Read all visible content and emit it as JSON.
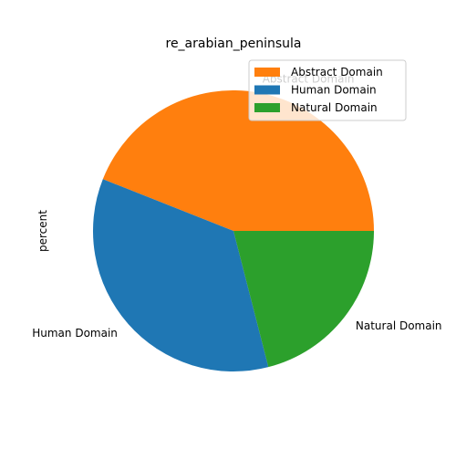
{
  "chart_data": {
    "type": "pie",
    "title": "re_arabian_peninsula",
    "ylabel": "percent",
    "categories": [
      "Abstract Domain",
      "Human Domain",
      "Natural Domain"
    ],
    "values": [
      44,
      35,
      21
    ],
    "colors": [
      "#ff7f0e",
      "#1f77b4",
      "#2ca02c"
    ],
    "legend": {
      "placement": "upper-right",
      "entries": [
        "Abstract Domain",
        "Human Domain",
        "Natural Domain"
      ]
    }
  }
}
